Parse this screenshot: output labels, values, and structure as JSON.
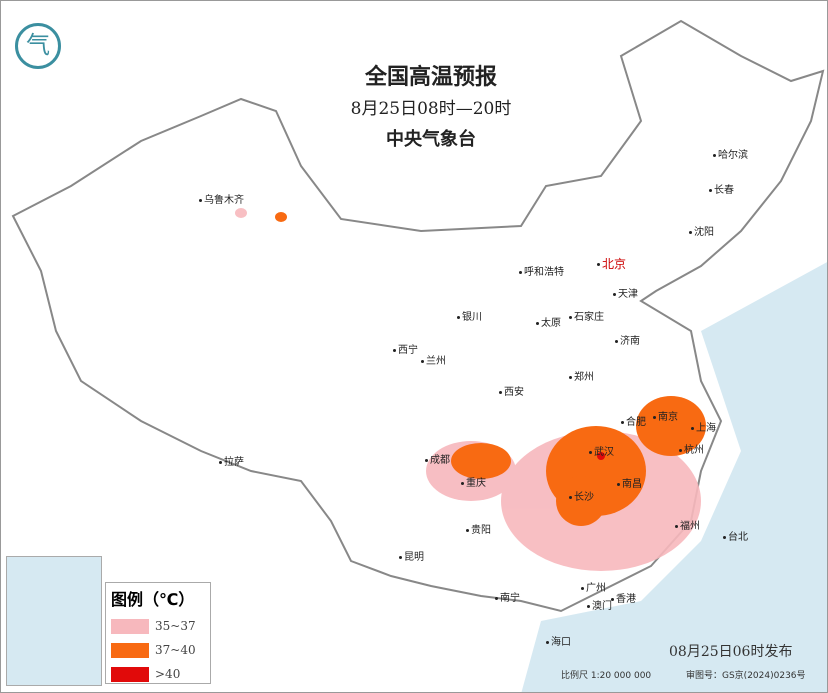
{
  "header": {
    "title": "全国高温预报",
    "time_range": "8月25日08时—20时",
    "issuer": "中央气象台"
  },
  "legend": {
    "title": "图例（℃）",
    "items": [
      {
        "label": "35~37",
        "color": "#f7b8bd"
      },
      {
        "label": "37~40",
        "color": "#f86a12"
      },
      {
        "label": ">40",
        "color": "#e10a0a"
      }
    ]
  },
  "cities": [
    "乌鲁木齐",
    "哈尔滨",
    "长春",
    "沈阳",
    "北京",
    "天津",
    "呼和浩特",
    "石家庄",
    "太原",
    "银川",
    "济南",
    "西宁",
    "兰州",
    "郑州",
    "西安",
    "合肥",
    "南京",
    "上海",
    "武汉",
    "杭州",
    "成都",
    "重庆",
    "拉萨",
    "长沙",
    "南昌",
    "贵阳",
    "福州",
    "台北",
    "昆明",
    "南宁",
    "广州",
    "香港",
    "澳门",
    "海口"
  ],
  "footer": {
    "published": "08月25日06时发布",
    "scale": "比例尺 1:20 000 000",
    "review_no": "审图号：GS京(2024)0236号"
  },
  "colors": {
    "sea": "#d6e9f2",
    "border": "#888888"
  }
}
